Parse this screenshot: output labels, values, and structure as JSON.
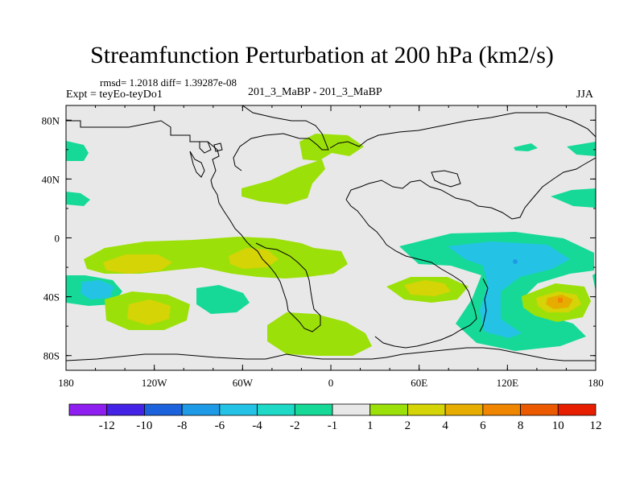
{
  "header": {
    "title": "Streamfunction Perturbation at 200 hPa (km2/s)",
    "stats": "rmsd= 1.2018 diff= 1.39287e-08",
    "experiment": "Expt = teyEo-teyDo1",
    "runs": "201_3_MaBP - 201_3_MaBP",
    "season": "JJA"
  },
  "chart_data": {
    "type": "heatmap",
    "title": "Streamfunction Perturbation at 200 hPa (km2/s)",
    "xlabel": "",
    "ylabel": "",
    "xlim": [
      -180,
      180
    ],
    "ylim": [
      -90,
      90
    ],
    "x_ticks": [
      {
        "value": -180,
        "label": "180"
      },
      {
        "value": -120,
        "label": "120W"
      },
      {
        "value": -60,
        "label": "60W"
      },
      {
        "value": 0,
        "label": "0"
      },
      {
        "value": 60,
        "label": "60E"
      },
      {
        "value": 120,
        "label": "120E"
      },
      {
        "value": 180,
        "label": "180"
      }
    ],
    "y_ticks": [
      {
        "value": 80,
        "label": "80N"
      },
      {
        "value": 40,
        "label": "40N"
      },
      {
        "value": 0,
        "label": "0"
      },
      {
        "value": -40,
        "label": "40S"
      },
      {
        "value": -80,
        "label": "80S"
      }
    ],
    "colorbar": {
      "boundaries": [
        "-12",
        "-10",
        "-8",
        "-6",
        "-4",
        "-2",
        "-1",
        "1",
        "2",
        "4",
        "6",
        "8",
        "10",
        "12"
      ],
      "colors": [
        "#8f1ef0",
        "#4523e6",
        "#1c62dc",
        "#1e9ae6",
        "#24c3e6",
        "#1dd9c6",
        "#16d998",
        "#e8e8e8",
        "#9ce00a",
        "#d4d406",
        "#e6ad00",
        "#f08500",
        "#ec5a00",
        "#e81e00"
      ]
    },
    "regions": [
      {
        "name": "arctic-atlantic-positive",
        "level": "1 to 2",
        "lon": -22,
        "lat": 55
      },
      {
        "name": "north-atlantic-positive",
        "level": "1 to 2",
        "lon": -40,
        "lat": 32
      },
      {
        "name": "tropical-pacific-positive",
        "level": "2 to 4",
        "lon": -125,
        "lat": -18
      },
      {
        "name": "tropical-central-america-positive",
        "level": "2 to 4",
        "lon": -65,
        "lat": -14
      },
      {
        "name": "south-pacific-positive",
        "level": "2 to 4",
        "lon": -120,
        "lat": -50
      },
      {
        "name": "south-atlantic-positive",
        "level": "1 to 2",
        "lon": -10,
        "lat": -70
      },
      {
        "name": "southern-africa-positive",
        "level": "2 to 4",
        "lon": 68,
        "lat": -35
      },
      {
        "name": "australia-positive",
        "level": "6 to 8",
        "lon": 158,
        "lat": -43
      },
      {
        "name": "indian-ocean-negative",
        "level": "-4 to -2",
        "lon": 110,
        "lat": -25
      },
      {
        "name": "southwest-pacific-negative",
        "level": "-4 to -2",
        "lon": -165,
        "lat": -37
      },
      {
        "name": "south-pacific-high-lat-negative",
        "level": "-2 to -1",
        "lon": -78,
        "lat": -42
      },
      {
        "name": "north-pacific-negative",
        "level": "-2 to -1",
        "lon": -172,
        "lat": 57
      },
      {
        "name": "east-asia-negative",
        "level": "-2 to -1",
        "lon": 140,
        "lat": 62
      },
      {
        "name": "far-east-negative",
        "level": "-2 to -1",
        "lon": 172,
        "lat": 60
      },
      {
        "name": "northwest-pacific-negative",
        "level": "-2 to -1",
        "lon": 168,
        "lat": 30
      },
      {
        "name": "equatorial-pacific-negative",
        "level": "-2 to -1",
        "lon": -172,
        "lat": 27
      }
    ]
  }
}
